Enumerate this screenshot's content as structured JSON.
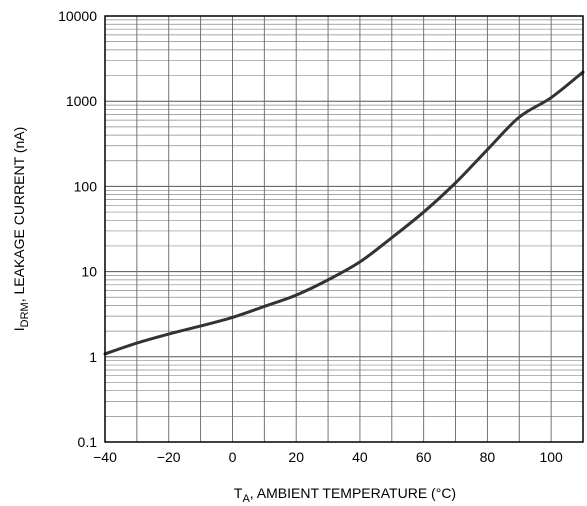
{
  "chart_data": {
    "type": "line",
    "title": "",
    "xlabel": {
      "main": "T",
      "sub": "A",
      "rest": ", AMBIENT TEMPERATURE (°C)"
    },
    "ylabel": {
      "main": "I",
      "sub": "DRM",
      "rest": ", LEAKAGE CURRENT (nA)"
    },
    "xscale": "linear",
    "yscale": "log",
    "xlim": [
      -40,
      110
    ],
    "ylim": [
      0.1,
      10000
    ],
    "xticks": [
      -40,
      -20,
      0,
      20,
      40,
      60,
      80,
      100
    ],
    "xtick_labels": [
      "−40",
      "−20",
      "0",
      "20",
      "40",
      "60",
      "80",
      "100"
    ],
    "yticks": [
      0.1,
      1,
      10,
      100,
      1000,
      10000
    ],
    "ytick_labels": [
      "0.1",
      "1",
      "10",
      "100",
      "1000",
      "10000"
    ],
    "grid": true,
    "series": [
      {
        "x": [
          -40,
          -30,
          -20,
          -10,
          0,
          10,
          20,
          30,
          40,
          50,
          60,
          70,
          80,
          90,
          100,
          110
        ],
        "values": [
          1.08,
          1.45,
          1.85,
          2.3,
          2.9,
          3.9,
          5.3,
          8.0,
          13.0,
          25.0,
          50.0,
          110.0,
          270.0,
          650.0,
          1100.0,
          2200.0
        ],
        "color": "#333333"
      }
    ]
  }
}
